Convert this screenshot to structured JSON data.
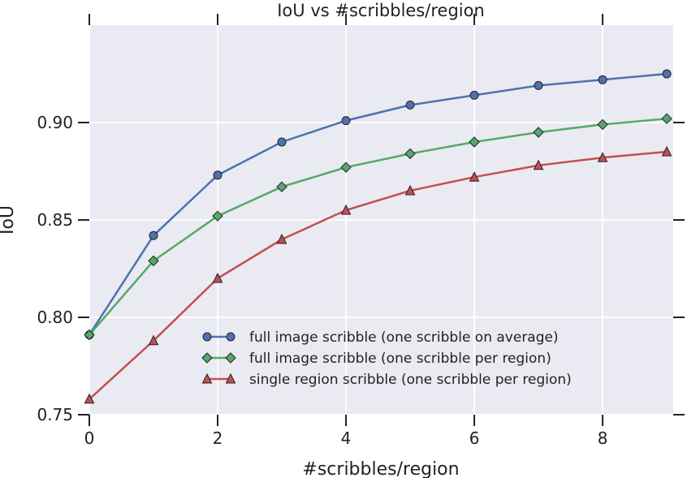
{
  "chart_data": {
    "type": "line",
    "title": "IoU vs #scribbles/region",
    "xlabel": "#scribbles/region",
    "ylabel": "IoU",
    "xlim": [
      0,
      9.1
    ],
    "ylim": [
      0.75,
      0.95
    ],
    "xticks": [
      0,
      2,
      4,
      6,
      8
    ],
    "yticks": [
      0.75,
      0.8,
      0.85,
      0.9
    ],
    "ytick_labels": [
      "0.75",
      "0.80",
      "0.85",
      "0.90"
    ],
    "grid": true,
    "background": "#eaeaf2",
    "legend_placement": "lower-right",
    "x": [
      0,
      1,
      2,
      3,
      4,
      5,
      6,
      7,
      8,
      9
    ],
    "series": [
      {
        "name": "full image scribble (one scribble on average)",
        "color": "#4c72b0",
        "marker": "circle",
        "values": [
          0.791,
          0.842,
          0.873,
          0.89,
          0.901,
          0.909,
          0.914,
          0.919,
          0.922,
          0.925
        ]
      },
      {
        "name": "full image scribble (one scribble per region)",
        "color": "#55a868",
        "marker": "diamond",
        "values": [
          0.791,
          0.829,
          0.852,
          0.867,
          0.877,
          0.884,
          0.89,
          0.895,
          0.899,
          0.902
        ]
      },
      {
        "name": "single region scribble (one scribble per region)",
        "color": "#c44e52",
        "marker": "triangle",
        "values": [
          0.758,
          0.788,
          0.82,
          0.84,
          0.855,
          0.865,
          0.872,
          0.878,
          0.882,
          0.885
        ]
      }
    ]
  }
}
